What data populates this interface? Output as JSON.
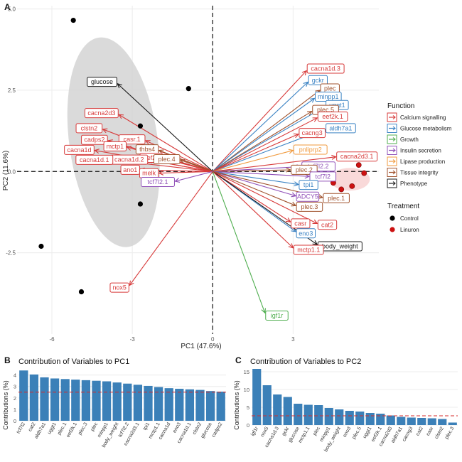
{
  "panels": {
    "a": {
      "tag": "A"
    },
    "b": {
      "tag": "B",
      "title": "Contribution of Variables to PC1",
      "ylabel": "Contributions (%)"
    },
    "c": {
      "tag": "C",
      "title": "Contribution of Variables to PC2",
      "ylabel": "Contributions (%)"
    }
  },
  "legend": {
    "function_title": "Function",
    "function_items": [
      {
        "label": "Calcium signalling",
        "color": "#d73a3a"
      },
      {
        "label": "Glucose metabolism",
        "color": "#3b83c4"
      },
      {
        "label": "Growth",
        "color": "#4fae4f"
      },
      {
        "label": "Insulin secretion",
        "color": "#9050b8"
      },
      {
        "label": "Lipase production",
        "color": "#f09a3e"
      },
      {
        "label": "Tissue integrity",
        "color": "#a0522d"
      },
      {
        "label": "Phenotype",
        "color": "#1a1a1a"
      }
    ],
    "treatment_title": "Treatment",
    "treatment_items": [
      {
        "label": "Control",
        "color": "#000000"
      },
      {
        "label": "Linuron",
        "color": "#cc1111"
      }
    ]
  },
  "chart_data": [
    {
      "type": "scatter",
      "subtype": "pca-biplot",
      "xlabel": "PC1 (47.6%)",
      "ylabel": "PC2 (11.6%)",
      "xlim": [
        -7.3,
        6.2
      ],
      "ylim": [
        -5.0,
        5.1
      ],
      "xticks": [
        -6,
        -3,
        0,
        3
      ],
      "yticks": [
        -2.5,
        0.0,
        2.5,
        5.0
      ],
      "ytick_labels": [
        "-2.5",
        "0.0",
        "2.5",
        "5.0"
      ],
      "grid": true,
      "reference_lines": "dashed at x=0 and y=0",
      "points": [
        {
          "treatment": "Control",
          "x": -5.2,
          "y": 4.65
        },
        {
          "treatment": "Control",
          "x": -0.9,
          "y": 2.55
        },
        {
          "treatment": "Control",
          "x": -2.7,
          "y": 1.4
        },
        {
          "treatment": "Control",
          "x": -2.7,
          "y": -1.0
        },
        {
          "treatment": "Control",
          "x": -6.4,
          "y": -2.3
        },
        {
          "treatment": "Control",
          "x": -4.9,
          "y": -3.7
        },
        {
          "treatment": "Linuron",
          "x": 4.5,
          "y": -0.35
        },
        {
          "treatment": "Linuron",
          "x": 4.8,
          "y": -0.55
        },
        {
          "treatment": "Linuron",
          "x": 5.2,
          "y": -0.45
        },
        {
          "treatment": "Linuron",
          "x": 5.45,
          "y": 0.2
        },
        {
          "treatment": "Linuron",
          "x": 5.65,
          "y": -0.05
        }
      ],
      "ellipses": [
        {
          "treatment": "Control",
          "center": [
            -3.7,
            0.9
          ],
          "semi_axes": [
            1.65,
            3.25
          ],
          "angle_deg": -8
        }
      ],
      "loadings": [
        {
          "label": "cacna1d.3",
          "function": "Calcium signalling",
          "x": 3.5,
          "y": 3.1
        },
        {
          "label": "gckr",
          "function": "Glucose metabolism",
          "x": 3.55,
          "y": 2.75
        },
        {
          "label": "plec",
          "function": "Tissue integrity",
          "x": 4.0,
          "y": 2.5
        },
        {
          "label": "minpp1",
          "function": "Glucose metabolism",
          "x": 3.8,
          "y": 2.25
        },
        {
          "label": "uggt1",
          "function": "Glucose metabolism",
          "x": 4.2,
          "y": 2.0
        },
        {
          "label": "plec.5",
          "function": "Tissue integrity",
          "x": 3.7,
          "y": 1.85
        },
        {
          "label": "eef2k.1",
          "function": "Calcium signalling",
          "x": 3.9,
          "y": 1.65
        },
        {
          "label": "aldh7a1",
          "function": "Glucose metabolism",
          "x": 4.2,
          "y": 1.3
        },
        {
          "label": "cacng3",
          "function": "Calcium signalling",
          "x": 3.2,
          "y": 1.15
        },
        {
          "label": "pnliprp2",
          "function": "Lipase production",
          "x": 3.0,
          "y": 0.65
        },
        {
          "label": "cacna2d3.1",
          "function": "Calcium signalling",
          "x": 4.6,
          "y": 0.45
        },
        {
          "label": "tcf7l2.2",
          "function": "Insulin secretion",
          "x": 3.3,
          "y": 0.15
        },
        {
          "label": "plec.2",
          "function": "Tissue integrity",
          "x": 2.9,
          "y": 0.05
        },
        {
          "label": "tcf7l2",
          "function": "Insulin secretion",
          "x": 3.6,
          "y": -0.15
        },
        {
          "label": "tpi1",
          "function": "Glucose metabolism",
          "x": 3.2,
          "y": -0.4
        },
        {
          "label": "ADCY5",
          "function": "Insulin secretion",
          "x": 3.1,
          "y": -0.75
        },
        {
          "label": "plec.1",
          "function": "Tissue integrity",
          "x": 4.1,
          "y": -0.8
        },
        {
          "label": "plec.3",
          "function": "Tissue integrity",
          "x": 3.1,
          "y": -1.05
        },
        {
          "label": "casr",
          "function": "Calcium signalling",
          "x": 2.9,
          "y": -1.55
        },
        {
          "label": "cat2",
          "function": "Calcium signalling",
          "x": 3.9,
          "y": -1.6
        },
        {
          "label": "eno3",
          "function": "Glucose metabolism",
          "x": 3.1,
          "y": -1.85
        },
        {
          "label": "body_weight",
          "function": "Phenotype",
          "x": 3.9,
          "y": -2.25
        },
        {
          "label": "mctp1.1",
          "function": "Calcium signalling",
          "x": 3.0,
          "y": -2.35
        },
        {
          "label": "igf1r",
          "function": "Growth",
          "x": 1.95,
          "y": -4.35
        },
        {
          "label": "glucose",
          "function": "Phenotype",
          "x": -3.55,
          "y": 2.7
        },
        {
          "label": "cacna2d3",
          "function": "Calcium signalling",
          "x": -3.5,
          "y": 1.75
        },
        {
          "label": "clstn2",
          "function": "Calcium signalling",
          "x": -4.1,
          "y": 1.3
        },
        {
          "label": "casr.1",
          "function": "Calcium signalling",
          "x": -2.5,
          "y": 0.95
        },
        {
          "label": "cadps2",
          "function": "Calcium signalling",
          "x": -3.9,
          "y": 0.95
        },
        {
          "label": "mctp1",
          "function": "Calcium signalling",
          "x": -3.2,
          "y": 0.75
        },
        {
          "label": "thbs4",
          "function": "Tissue integrity",
          "x": -2.0,
          "y": 0.65
        },
        {
          "label": "cacna1d",
          "function": "Calcium signalling",
          "x": -4.4,
          "y": 0.65
        },
        {
          "label": "eef2k",
          "function": "Calcium signalling",
          "x": -1.85,
          "y": 0.4
        },
        {
          "label": "plec.4",
          "function": "Tissue integrity",
          "x": -1.2,
          "y": 0.35
        },
        {
          "label": "cacna1d.2",
          "function": "Calcium signalling",
          "x": -2.4,
          "y": 0.35
        },
        {
          "label": "cacna1d.1",
          "function": "Calcium signalling",
          "x": -3.7,
          "y": 0.35
        },
        {
          "label": "ano1",
          "function": "Calcium signalling",
          "x": -2.7,
          "y": 0.05
        },
        {
          "label": "melk",
          "function": "Calcium signalling",
          "x": -2.0,
          "y": -0.05
        },
        {
          "label": "tcf7l2.1",
          "function": "Insulin secretion",
          "x": -1.4,
          "y": -0.3
        },
        {
          "label": "nox5",
          "function": "Calcium signalling",
          "x": -3.1,
          "y": -3.5
        }
      ]
    },
    {
      "type": "bar",
      "title": "Contribution of Variables to PC1",
      "ylabel": "Contributions (%)",
      "ylim": [
        0,
        4.6
      ],
      "yticks": [
        0,
        1,
        2,
        3,
        4
      ],
      "reference_line": 2.5,
      "color": "#3b80b8",
      "categories": [
        "tcf7l2",
        "cat2",
        "aldh7a1",
        "uggt1",
        "plec.1",
        "eef2k.1",
        "plec.3",
        "plec",
        "minpp1",
        "body_weight",
        "tcf7l2.2",
        "cacna2d3.1",
        "tpi1",
        "mctp1.1",
        "cacna1d",
        "eno3",
        "cacna1d.1",
        "clstn2",
        "glucose",
        "cadps2"
      ],
      "values": [
        4.4,
        4.05,
        3.8,
        3.7,
        3.65,
        3.6,
        3.55,
        3.5,
        3.45,
        3.35,
        3.25,
        3.15,
        3.05,
        2.95,
        2.85,
        2.8,
        2.75,
        2.7,
        2.6,
        2.55
      ]
    },
    {
      "type": "bar",
      "title": "Contribution of Variables to PC2",
      "ylabel": "Contributions (%)",
      "ylim": [
        0,
        16
      ],
      "yticks": [
        0,
        5,
        10,
        15
      ],
      "reference_line": 2.6,
      "color": "#3b80b8",
      "categories": [
        "igf1r",
        "nox5",
        "cacna1d.3",
        "gckr",
        "glucose",
        "mctp1.1",
        "plec",
        "minpp1",
        "body_weight",
        "eno3",
        "plec.5",
        "uggt1",
        "eef2k.1",
        "cacna2d3",
        "aldh7a1",
        "cacng3",
        "cat2",
        "casr",
        "clstn2",
        "plec.3"
      ],
      "values": [
        15.8,
        11.2,
        8.6,
        7.9,
        6.0,
        5.7,
        5.6,
        4.8,
        4.4,
        4.0,
        3.8,
        3.4,
        3.2,
        2.7,
        2.3,
        2.1,
        2.0,
        1.9,
        1.7,
        0.7
      ]
    }
  ]
}
